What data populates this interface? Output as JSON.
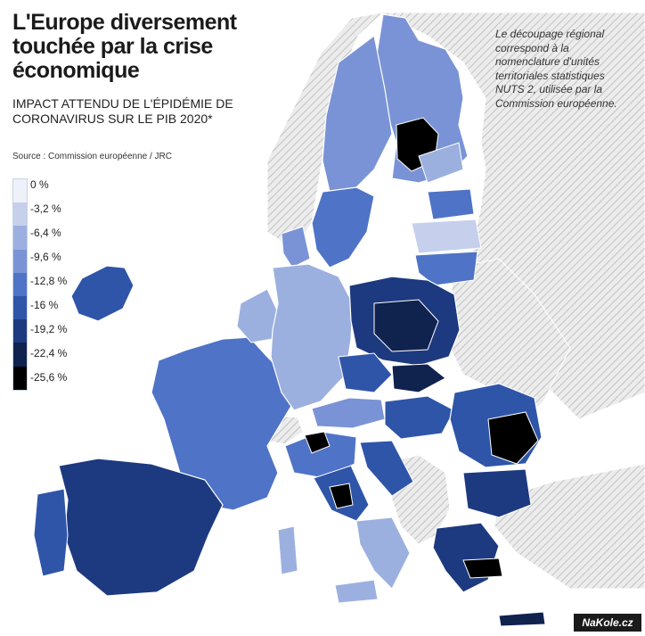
{
  "title": "L'Europe diversement touchée par la crise économique",
  "subtitle": "IMPACT ATTENDU DE L'ÉPIDÉMIE DE CORONAVIRUS SUR LE PIB 2020*",
  "source": "Source : Commission européenne / JRC",
  "note": "Le découpage régional correspond à la nomenclature d'unités territoriales statistiques NUTS 2, utilisée par la Commission européenne.",
  "brand": "NaKole.cz",
  "legend": {
    "labels": [
      "0 %",
      "-3,2 %",
      "-6,4 %",
      "-9,6 %",
      "-12,8 %",
      "-16 %",
      "-19,2 %",
      "-22,4 %",
      "-25,6 %"
    ],
    "colors": [
      "#eef1fa",
      "#c6d0ec",
      "#9cb0e0",
      "#7a93d6",
      "#4f73c6",
      "#2f55a9",
      "#1d3a80",
      "#10224e",
      "#000000"
    ]
  },
  "colors": {
    "sea": "#ffffff",
    "non_eu_hatch": "#d6d6d6",
    "border": "#ffffff"
  }
}
